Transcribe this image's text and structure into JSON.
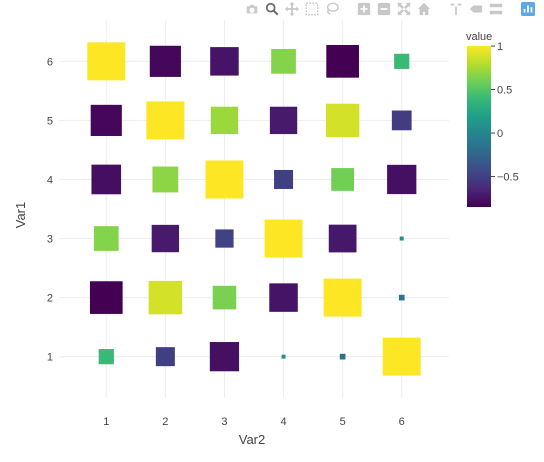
{
  "toolbar": {
    "buttons": [
      {
        "name": "camera-icon",
        "label": "Download plot as png"
      },
      {
        "name": "zoom-icon",
        "label": "Zoom"
      },
      {
        "name": "pan-icon",
        "label": "Pan"
      },
      {
        "name": "box-select-icon",
        "label": "Box Select"
      },
      {
        "name": "lasso-select-icon",
        "label": "Lasso Select"
      },
      {
        "name": "zoom-in-icon",
        "label": "Zoom in"
      },
      {
        "name": "zoom-out-icon",
        "label": "Zoom out"
      },
      {
        "name": "autoscale-icon",
        "label": "Autoscale"
      },
      {
        "name": "home-icon",
        "label": "Reset axes"
      },
      {
        "name": "spike-lines-icon",
        "label": "Toggle Spike Lines"
      },
      {
        "name": "hover-closest-icon",
        "label": "Show closest data on hover"
      },
      {
        "name": "hover-compare-icon",
        "label": "Compare data on hover"
      },
      {
        "name": "plotly-logo-icon",
        "label": "Produced with Plotly"
      }
    ]
  },
  "chart_data": {
    "type": "scatter",
    "marker_symbol": "square",
    "xlabel": "Var2",
    "ylabel": "Var1",
    "x_ticks": [
      1,
      2,
      3,
      4,
      5,
      6
    ],
    "y_ticks": [
      1,
      2,
      3,
      4,
      5,
      6
    ],
    "xlim": [
      0.2,
      6.8
    ],
    "ylim": [
      0.3,
      6.7
    ],
    "grid": true,
    "colorbar": {
      "title": "value",
      "range": [
        -0.85,
        1
      ],
      "ticks": [
        1,
        0.5,
        0,
        -0.5
      ],
      "tick_labels": [
        "1",
        "0.5",
        "0",
        "−0.5"
      ],
      "colorscale": [
        "#440154",
        "#482878",
        "#3e4989",
        "#31688e",
        "#26828e",
        "#1f9e89",
        "#35b779",
        "#6ece58",
        "#b5de2b",
        "#fde725"
      ]
    },
    "points": [
      {
        "x": 1,
        "y": 6,
        "value": 1.0
      },
      {
        "x": 2,
        "y": 6,
        "value": -0.82
      },
      {
        "x": 3,
        "y": 6,
        "value": -0.75
      },
      {
        "x": 4,
        "y": 6,
        "value": 0.65
      },
      {
        "x": 5,
        "y": 6,
        "value": -0.86
      },
      {
        "x": 6,
        "y": 6,
        "value": 0.4
      },
      {
        "x": 1,
        "y": 5,
        "value": -0.82
      },
      {
        "x": 2,
        "y": 5,
        "value": 1.0
      },
      {
        "x": 3,
        "y": 5,
        "value": 0.72
      },
      {
        "x": 4,
        "y": 5,
        "value": -0.72
      },
      {
        "x": 5,
        "y": 5,
        "value": 0.88
      },
      {
        "x": 6,
        "y": 5,
        "value": -0.52
      },
      {
        "x": 1,
        "y": 4,
        "value": -0.78
      },
      {
        "x": 2,
        "y": 4,
        "value": 0.68
      },
      {
        "x": 3,
        "y": 4,
        "value": 1.0
      },
      {
        "x": 4,
        "y": 4,
        "value": -0.5
      },
      {
        "x": 5,
        "y": 4,
        "value": 0.6
      },
      {
        "x": 6,
        "y": 4,
        "value": -0.77
      },
      {
        "x": 1,
        "y": 3,
        "value": 0.65
      },
      {
        "x": 2,
        "y": 3,
        "value": -0.72
      },
      {
        "x": 3,
        "y": 3,
        "value": -0.48
      },
      {
        "x": 4,
        "y": 3,
        "value": 1.0
      },
      {
        "x": 5,
        "y": 3,
        "value": -0.73
      },
      {
        "x": 6,
        "y": 3,
        "value": 0.1
      },
      {
        "x": 1,
        "y": 2,
        "value": -0.86
      },
      {
        "x": 2,
        "y": 2,
        "value": 0.88
      },
      {
        "x": 3,
        "y": 2,
        "value": 0.62
      },
      {
        "x": 4,
        "y": 2,
        "value": -0.75
      },
      {
        "x": 5,
        "y": 2,
        "value": 1.0
      },
      {
        "x": 6,
        "y": 2,
        "value": -0.15
      },
      {
        "x": 1,
        "y": 1,
        "value": 0.4
      },
      {
        "x": 2,
        "y": 1,
        "value": -0.5
      },
      {
        "x": 3,
        "y": 1,
        "value": -0.77
      },
      {
        "x": 4,
        "y": 1,
        "value": 0.1
      },
      {
        "x": 5,
        "y": 1,
        "value": -0.15
      },
      {
        "x": 6,
        "y": 1,
        "value": 1.0
      }
    ]
  }
}
